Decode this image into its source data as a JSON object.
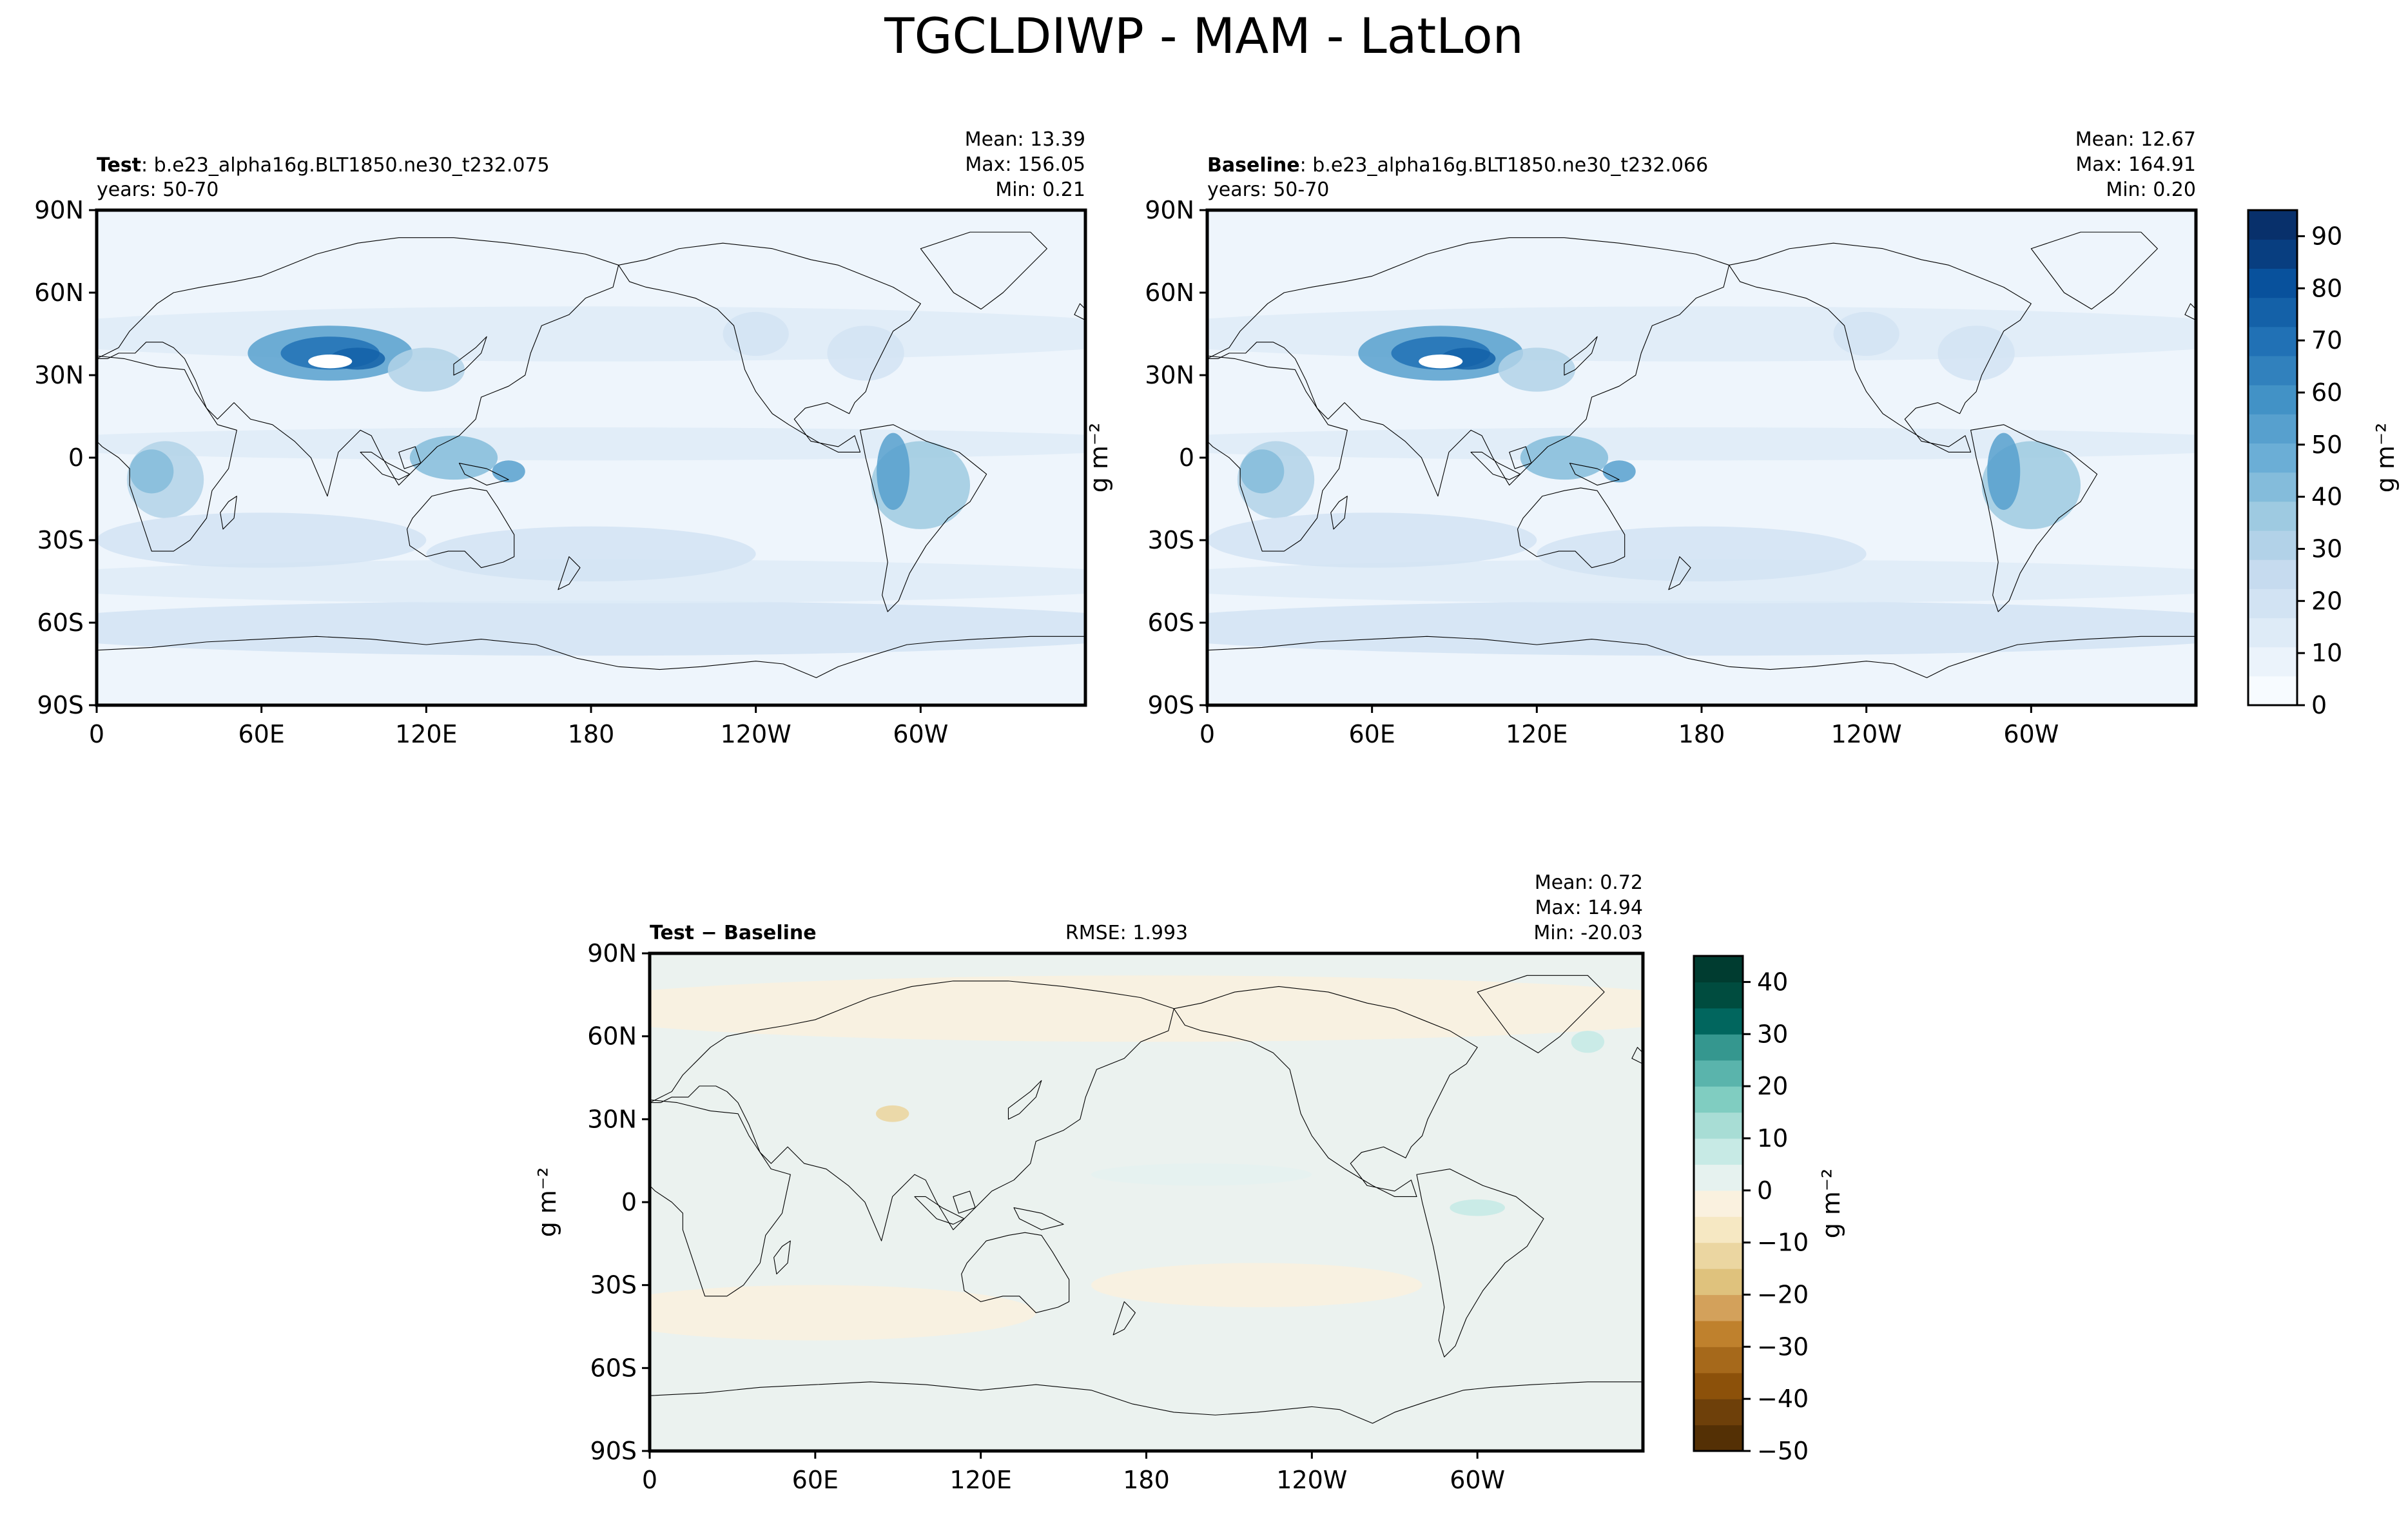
{
  "figure_title": "TGCLDIWP - MAM - LatLon",
  "chart_data": [
    {
      "type": "heatmap",
      "panel": "test",
      "label_bold": "Test",
      "label_rest": ": b.e23_alpha16g.BLT1850.ne30_t232.075",
      "years": "years: 50-70",
      "stats": {
        "mean": "Mean: 13.39",
        "max": "Max: 156.05",
        "min": "Min:  0.21"
      },
      "ylabel": "g m⁻²",
      "x_ticks": [
        "0",
        "60E",
        "120E",
        "180",
        "120W",
        "60W"
      ],
      "y_ticks": [
        "90N",
        "60N",
        "30N",
        "0",
        "30S",
        "60S",
        "90S"
      ],
      "xlim": [
        0,
        360
      ],
      "ylim": [
        -90,
        90
      ]
    },
    {
      "type": "heatmap",
      "panel": "baseline",
      "label_bold": "Baseline",
      "label_rest": ": b.e23_alpha16g.BLT1850.ne30_t232.066",
      "years": "years: 50-70",
      "stats": {
        "mean": "Mean: 12.67",
        "max": "Max: 164.91",
        "min": "Min:  0.20"
      },
      "ylabel": "g m⁻²",
      "x_ticks": [
        "0",
        "60E",
        "120E",
        "180",
        "120W",
        "60W"
      ],
      "y_ticks": [
        "90N",
        "60N",
        "30N",
        "0",
        "30S",
        "60S",
        "90S"
      ],
      "xlim": [
        0,
        360
      ],
      "ylim": [
        -90,
        90
      ]
    },
    {
      "type": "heatmap",
      "panel": "diff",
      "label_bold": "Test − Baseline",
      "rmse": "RMSE: 1.993",
      "stats": {
        "mean": "Mean:  0.72",
        "max": "Max: 14.94",
        "min": "Min: -20.03"
      },
      "ylabel": "g m⁻²",
      "x_ticks": [
        "0",
        "60E",
        "120E",
        "180",
        "120W",
        "60W"
      ],
      "y_ticks": [
        "90N",
        "60N",
        "30N",
        "0",
        "30S",
        "60S",
        "90S"
      ],
      "xlim": [
        0,
        360
      ],
      "ylim": [
        -90,
        90
      ]
    }
  ],
  "colorbars": {
    "main": {
      "unit": "g m⁻²",
      "ticks": [
        0,
        10,
        20,
        30,
        40,
        50,
        60,
        70,
        80,
        90
      ],
      "range": [
        0,
        95
      ],
      "colors": [
        "#f7fbff",
        "#ebf3fb",
        "#deebf7",
        "#d2e3f3",
        "#c6dbef",
        "#b2d2e8",
        "#9ecae1",
        "#84bcdb",
        "#6baed6",
        "#57a0ce",
        "#4292c6",
        "#3181bd",
        "#2171b5",
        "#1461a8",
        "#08519c",
        "#083e80",
        "#08306b"
      ]
    },
    "diff": {
      "unit": "g m⁻²",
      "ticks": [
        -50,
        -40,
        -30,
        -20,
        -10,
        0,
        10,
        20,
        30,
        40
      ],
      "tick_labels": [
        "−50",
        "−40",
        "−30",
        "−20",
        "−10",
        "0",
        "10",
        "20",
        "30",
        "40"
      ],
      "range": [
        -50,
        45
      ],
      "colors": [
        "#543005",
        "#6e400a",
        "#8c510a",
        "#a6691b",
        "#bf812d",
        "#d3a15b",
        "#dfc27d",
        "#ebd6a1",
        "#f6e8c3",
        "#faf1df",
        "#e6f2ef",
        "#c7eae5",
        "#a8ddd5",
        "#80cdc1",
        "#5ab4ac",
        "#35978f",
        "#01665e",
        "#004c3f",
        "#003c30"
      ]
    }
  },
  "colors": {
    "ocean_blue": "#eef5fc",
    "diff_bg": "#ebf2ef",
    "coast": "#000000"
  }
}
